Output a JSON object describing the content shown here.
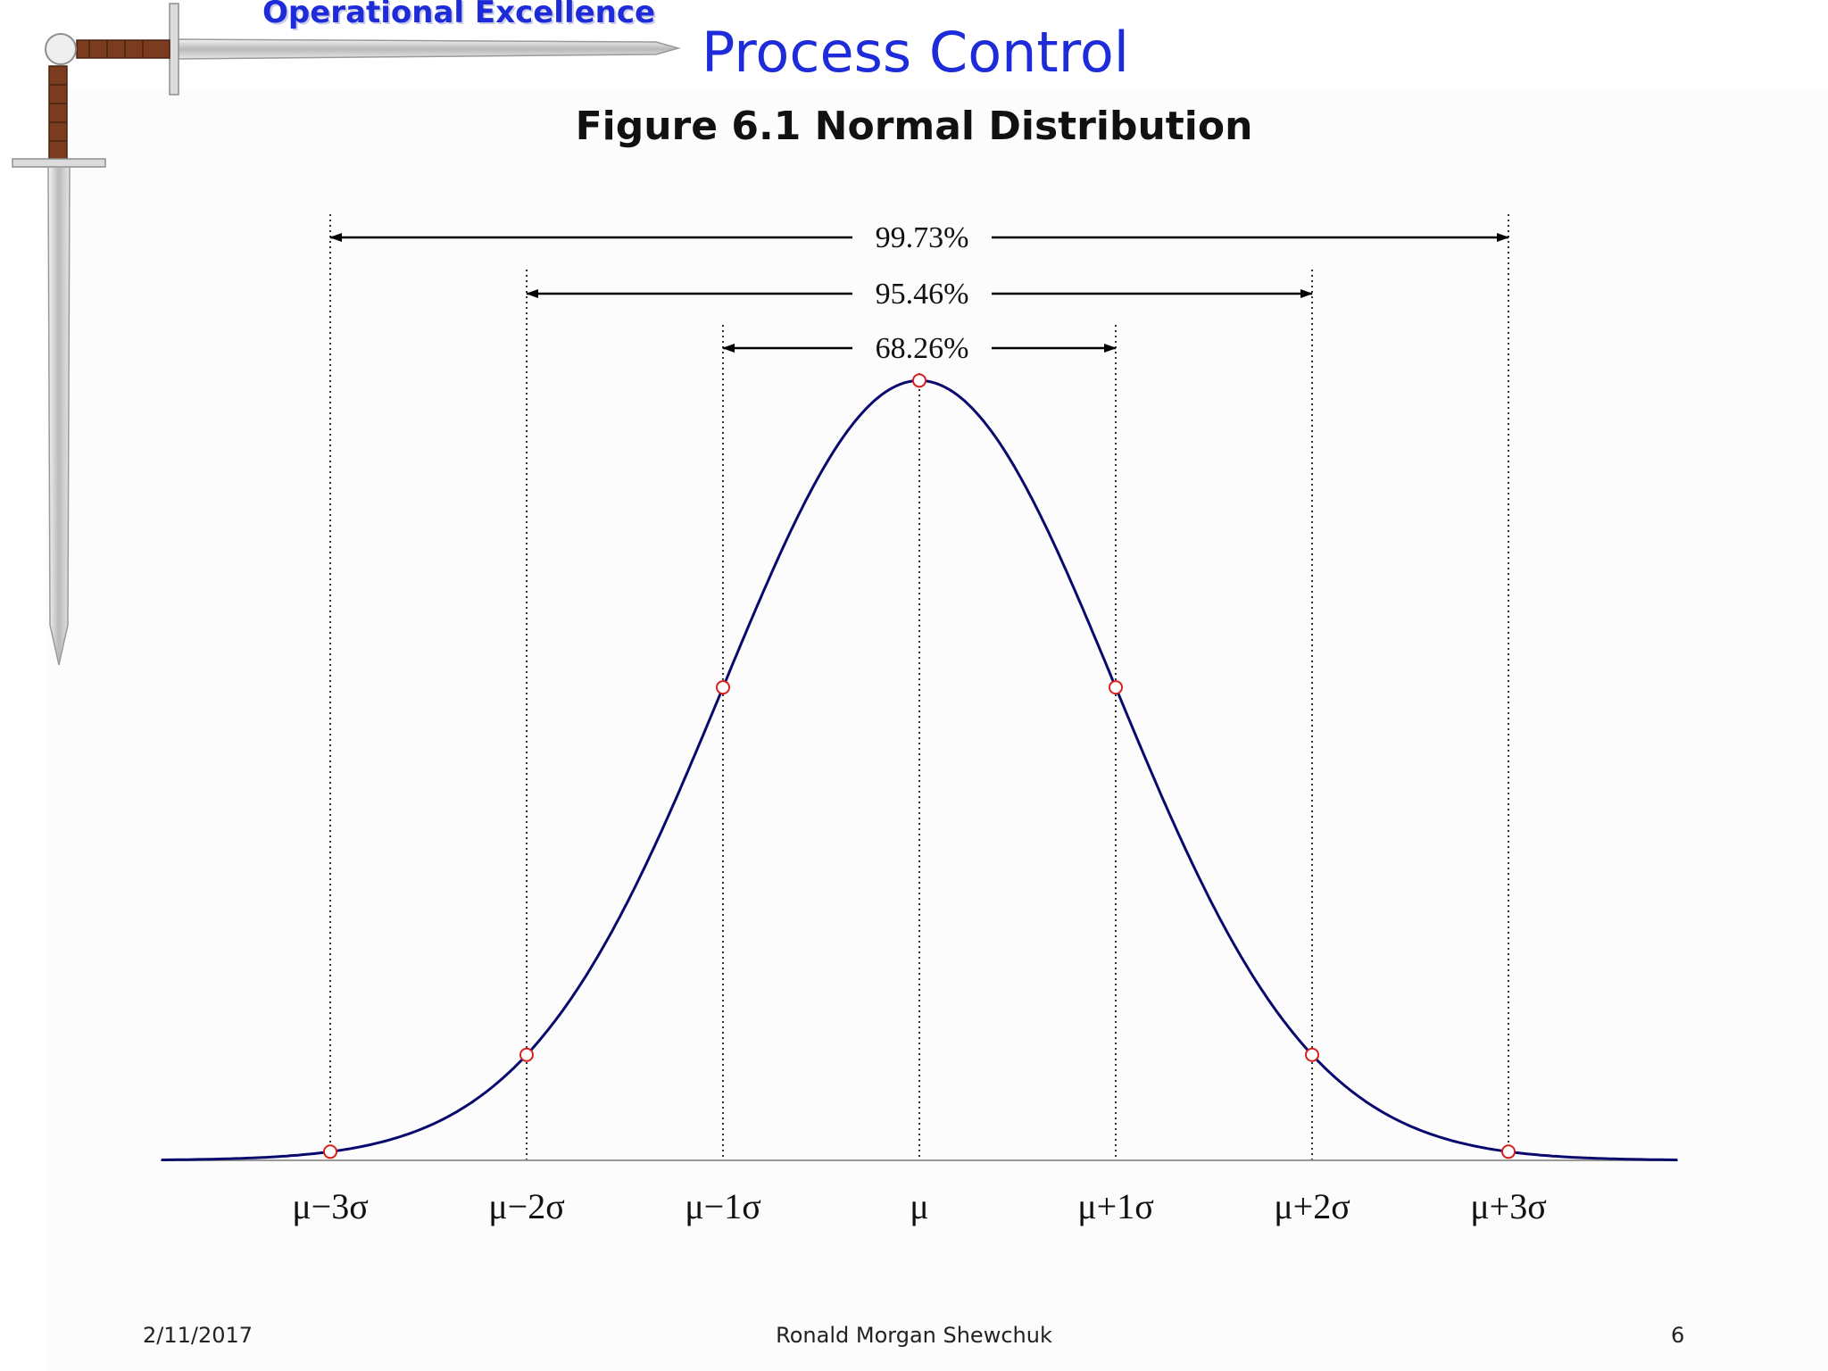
{
  "header": {
    "logo_text": "Operational Excellence",
    "title": "Process Control",
    "figure_title": "Figure 6.1  Normal Distribution"
  },
  "chart_data": {
    "type": "line",
    "title": "Figure 6.1  Normal Distribution",
    "xlabel": "",
    "ylabel": "",
    "xlim": [
      -4.0,
      4.0
    ],
    "ylim": [
      0,
      0.4
    ],
    "x_tick_values": [
      -3,
      -2,
      -1,
      0,
      1,
      2,
      3
    ],
    "x_tick_labels": [
      "μ−3σ",
      "μ−2σ",
      "μ−1σ",
      "μ",
      "μ+1σ",
      "μ+2σ",
      "μ+3σ"
    ],
    "grid": false,
    "series": [
      {
        "curve": "normal-pdf",
        "mean": 0,
        "sd": 1,
        "color": "#0a0a6e",
        "marked_points": [
          {
            "x": -3,
            "y": 0.0044
          },
          {
            "x": -2,
            "y": 0.054
          },
          {
            "x": -1,
            "y": 0.242
          },
          {
            "x": 0,
            "y": 0.399
          },
          {
            "x": 1,
            "y": 0.242
          },
          {
            "x": 2,
            "y": 0.054
          },
          {
            "x": 3,
            "y": 0.0044
          }
        ]
      }
    ],
    "intervals": [
      {
        "from": -3,
        "to": 3,
        "label": "99.73%"
      },
      {
        "from": -2,
        "to": 2,
        "label": "95.46%"
      },
      {
        "from": -1,
        "to": 1,
        "label": "68.26%"
      }
    ],
    "colors": {
      "curve": "#0a0a6e",
      "marker": "#d42020",
      "guide": "#000000",
      "axis": "#9a9a9a"
    }
  },
  "footer": {
    "date": "2/11/2017",
    "author": "Ronald Morgan Shewchuk",
    "page": "6"
  }
}
